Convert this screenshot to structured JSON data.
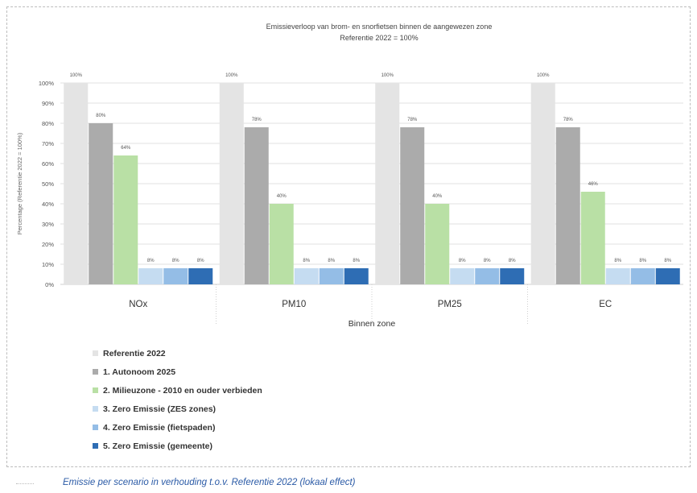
{
  "chart_data": {
    "type": "bar",
    "title": "Emissieverloop van brom- en snorfietsen binnen de aangewezen zone",
    "subtitle": "Referentie 2022 = 100%",
    "xlabel": "Binnen zone",
    "ylabel": "Percentage (Referentie 2022 = 100%)",
    "ylim": [
      0,
      100
    ],
    "yticks": [
      "0%",
      "10%",
      "20%",
      "30%",
      "40%",
      "50%",
      "60%",
      "70%",
      "80%",
      "90%",
      "100%"
    ],
    "grid": true,
    "legend_position": "bottom-left",
    "categories": [
      "NOx",
      "PM10",
      "PM25",
      "EC"
    ],
    "series": [
      {
        "name": "Referentie 2022",
        "color": "#e4e4e4",
        "values": [
          100,
          100,
          100,
          100
        ],
        "labels": [
          "100%",
          "100%",
          "100%",
          "100%"
        ]
      },
      {
        "name": "1. Autonoom 2025",
        "color": "#ababab",
        "values": [
          80,
          78,
          78,
          78
        ],
        "labels": [
          "80%",
          "78%",
          "78%",
          "78%"
        ]
      },
      {
        "name": "2. Milieuzone - 2010 en ouder verbieden",
        "color": "#b9e0a5",
        "values": [
          64,
          40,
          40,
          46
        ],
        "labels": [
          "64%",
          "40%",
          "40%",
          "46%"
        ]
      },
      {
        "name": "3. Zero Emissie (ZES zones)",
        "color": "#c5dcf1",
        "values": [
          8,
          8,
          8,
          8
        ],
        "labels": [
          "8%",
          "8%",
          "8%",
          "8%"
        ]
      },
      {
        "name": "4. Zero Emissie (fietspaden)",
        "color": "#94bde6",
        "values": [
          8,
          8,
          8,
          8
        ],
        "labels": [
          "8%",
          "8%",
          "8%",
          "8%"
        ]
      },
      {
        "name": "5. Zero Emissie (gemeente)",
        "color": "#2e6db4",
        "values": [
          8,
          8,
          8,
          8
        ],
        "labels": [
          "8%",
          "8%",
          "8%",
          "8%"
        ]
      }
    ]
  },
  "caption": "Emissie per scenario in verhouding t.o.v. Referentie 2022 (lokaal effect)"
}
